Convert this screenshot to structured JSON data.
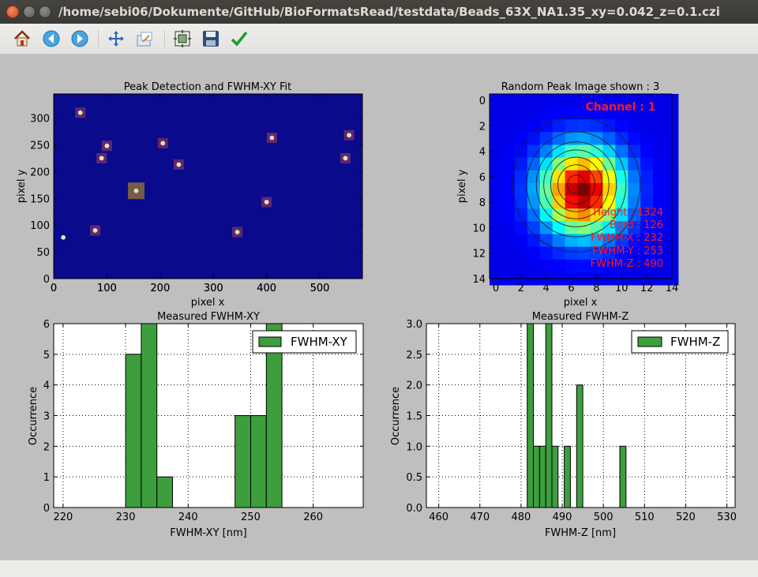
{
  "window": {
    "title": "/home/sebi06/Dokumente/GitHub/BioFormatsRead/testdata/Beads_63X_NA1.35_xy=0.042_z=0.1.czi",
    "buttons": [
      "close",
      "minimize",
      "maximize"
    ]
  },
  "toolbar": {
    "items": [
      {
        "icon": "home-icon",
        "tooltip": "Reset original view"
      },
      {
        "icon": "back-arrow-icon",
        "tooltip": "Back"
      },
      {
        "icon": "forward-arrow-icon",
        "tooltip": "Forward"
      },
      {
        "icon": "pan-icon",
        "tooltip": "Pan"
      },
      {
        "icon": "zoom-icon",
        "tooltip": "Zoom"
      },
      {
        "icon": "subplots-icon",
        "tooltip": "Configure subplots"
      },
      {
        "icon": "save-icon",
        "tooltip": "Save"
      },
      {
        "icon": "edit-check-icon",
        "tooltip": "Edit curves"
      }
    ]
  },
  "colors": {
    "figure_bg": "#bfbfbf",
    "bar_green": "#3d9e3d",
    "annot_red": "#ff1a1a",
    "heat_bg": "#0a0a8c"
  },
  "chart_data": [
    {
      "type": "scatter",
      "title": "Peak Detection and FWHM-XY Fit",
      "xlabel": "pixel x",
      "ylabel": "pixel y",
      "xlim": [
        0,
        580
      ],
      "ylim": [
        0,
        345
      ],
      "xticks": [
        0,
        100,
        200,
        300,
        400,
        500
      ],
      "yticks": [
        0,
        50,
        100,
        150,
        200,
        250,
        300
      ],
      "background": "#0a0a8c",
      "x": [
        50,
        100,
        90,
        205,
        235,
        410,
        555,
        548,
        155,
        400,
        78,
        345,
        18
      ],
      "y": [
        310,
        248,
        225,
        253,
        213,
        263,
        268,
        225,
        164,
        143,
        90,
        87,
        77
      ],
      "marked": [
        true,
        true,
        true,
        true,
        true,
        true,
        true,
        true,
        true,
        true,
        true,
        true,
        false
      ],
      "highlighted_index": 8,
      "grid": false
    },
    {
      "type": "heatmap",
      "title": "Random Peak Image shown : 3",
      "xlabel": "pixel x",
      "ylabel": "pixel y",
      "xticks": [
        0,
        2,
        4,
        6,
        8,
        10,
        12,
        14
      ],
      "yticks": [
        0,
        2,
        4,
        6,
        8,
        10,
        12,
        14
      ],
      "xlim": [
        0,
        14.5
      ],
      "ylim": [
        14.5,
        0
      ],
      "center": [
        6.9,
        7.1
      ],
      "height": 1324,
      "bgrd": 126,
      "fwhm": {
        "x": 232,
        "y": 253,
        "z": 490
      },
      "contours": 7,
      "channel_label": "Channel : 1",
      "annotation_lines": [
        "Height : 1324",
        "Bgrd  : 126",
        "FWHM-X : 232",
        "FWHM-Y : 253",
        "FWHM-Z : 490"
      ],
      "annotation_color": "#ff1a1a"
    },
    {
      "type": "bar",
      "title": "Measured FWHM-XY",
      "xlabel": "FWHM-XY [nm]",
      "ylabel": "Occurrence",
      "xlim": [
        218.5,
        268
      ],
      "ylim": [
        0,
        6
      ],
      "xticks": [
        220,
        230,
        240,
        250,
        260
      ],
      "yticks": [
        0,
        1,
        2,
        3,
        4,
        5,
        6
      ],
      "bin_width": 2.5,
      "bins": [
        {
          "x": 230.0,
          "value": 5
        },
        {
          "x": 232.5,
          "value": 6
        },
        {
          "x": 235.0,
          "value": 1
        },
        {
          "x": 247.5,
          "value": 3
        },
        {
          "x": 250.0,
          "value": 3
        },
        {
          "x": 252.5,
          "value": 6
        }
      ],
      "legend": "FWHM-XY",
      "legend_position": "top-right",
      "grid": true
    },
    {
      "type": "bar",
      "title": "Measured FWHM-Z",
      "xlabel": "FWHM-Z [nm]",
      "ylabel": "Occurrence",
      "xlim": [
        457,
        532
      ],
      "ylim": [
        0,
        3
      ],
      "xticks": [
        460,
        470,
        480,
        490,
        500,
        510,
        520,
        530
      ],
      "yticks": [
        "0.0",
        "0.5",
        "1.0",
        "1.5",
        "2.0",
        "2.5",
        "3.0"
      ],
      "bin_width": 1.5,
      "bins": [
        {
          "x": 481.5,
          "value": 3
        },
        {
          "x": 483.0,
          "value": 1
        },
        {
          "x": 484.5,
          "value": 1
        },
        {
          "x": 486.0,
          "value": 3
        },
        {
          "x": 487.5,
          "value": 1
        },
        {
          "x": 490.5,
          "value": 1
        },
        {
          "x": 493.5,
          "value": 2
        },
        {
          "x": 504.0,
          "value": 1
        }
      ],
      "legend": "FWHM-Z",
      "legend_position": "top-right",
      "grid": true
    }
  ]
}
